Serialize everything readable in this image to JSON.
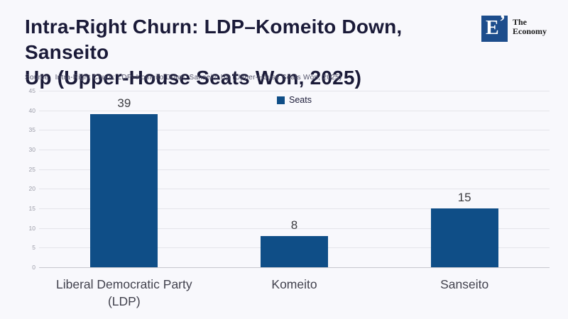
{
  "header": {
    "title_line1": "Intra-Right Churn: LDP–Komeito Down, Sanseito",
    "title_line2": "Up (Upper-House Seats Won, 2025)",
    "logo": {
      "letter": "E",
      "mark": "’",
      "brand_line1": "The",
      "brand_line2": "Economy"
    }
  },
  "source": {
    "label": "Source:",
    "text": "Intra-Right Churn: LDP–Komeito Down, Sanseito Up (Upper-House Seats Won, 2025)"
  },
  "chart_data": {
    "type": "bar",
    "title": "Intra-Right Churn: LDP–Komeito Down, Sanseito Up (Upper-House Seats Won, 2025)",
    "categories": [
      "Liberal Democratic Party (LDP)",
      "Komeito",
      "Sanseito"
    ],
    "values": [
      39,
      8,
      15
    ],
    "series_label": "Seats",
    "xlabel": "",
    "ylabel": "",
    "ylim": [
      0,
      45
    ],
    "ytick_step": 5,
    "grid": true,
    "legend_position": "top-center",
    "bar_color": "#0f4e87"
  },
  "colors": {
    "background": "#f8f8fc",
    "title": "#1a1a38",
    "bar": "#0f4e87",
    "logo": "#1d4d8c",
    "gridline": "#e4e4ea",
    "axis_line": "#c6c6cd"
  }
}
